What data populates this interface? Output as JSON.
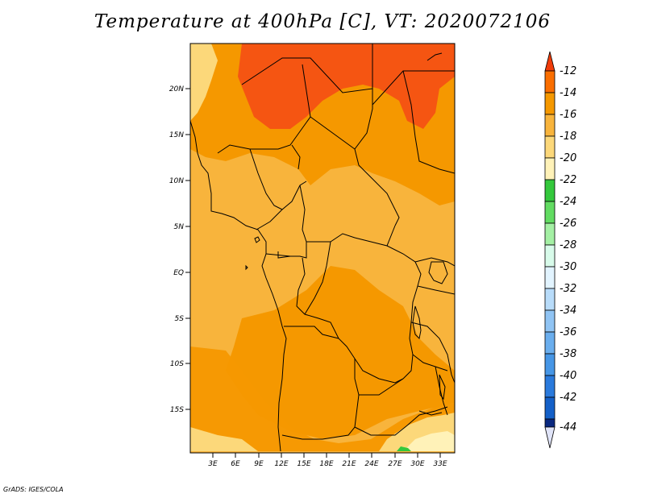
{
  "title": "Temperature at 400hPa [C], VT: 2020072106",
  "credit": "GrADS: IGES/COLA",
  "axes": {
    "lat_labels": [
      "20N",
      "15N",
      "10N",
      "5N",
      "EQ",
      "5S",
      "10S",
      "15S"
    ],
    "lon_labels": [
      "3E",
      "6E",
      "9E",
      "12E",
      "15E",
      "18E",
      "21E",
      "24E",
      "27E",
      "30E",
      "33E"
    ]
  },
  "colorbar": {
    "labels": [
      "-12",
      "-14",
      "-16",
      "-18",
      "-20",
      "-22",
      "-24",
      "-26",
      "-28",
      "-30",
      "-32",
      "-34",
      "-36",
      "-38",
      "-40",
      "-42",
      "-44"
    ],
    "colors": [
      "#f03c0a",
      "#fa6e00",
      "#f5a000",
      "#fac040",
      "#ffe080",
      "#fff8c0",
      "#30c838",
      "#60dc60",
      "#a0f0a0",
      "#e0fff0",
      "#c8e8ff",
      "#a0d0f8",
      "#78b8f0",
      "#50a0e8",
      "#2e86e0",
      "#1464c8",
      "#0c50b4",
      "#0a2880",
      "#e0e4f8"
    ]
  },
  "legend_colors": {
    "c_-14_-12": "#f55512",
    "c_-16_-14": "#f59800",
    "c_-18_-16": "#f8b43c",
    "c_-20_-18": "#fcd87a",
    "c_-22_-20": "#fff2b8",
    "c_-24_-22": "#34c83c"
  }
}
